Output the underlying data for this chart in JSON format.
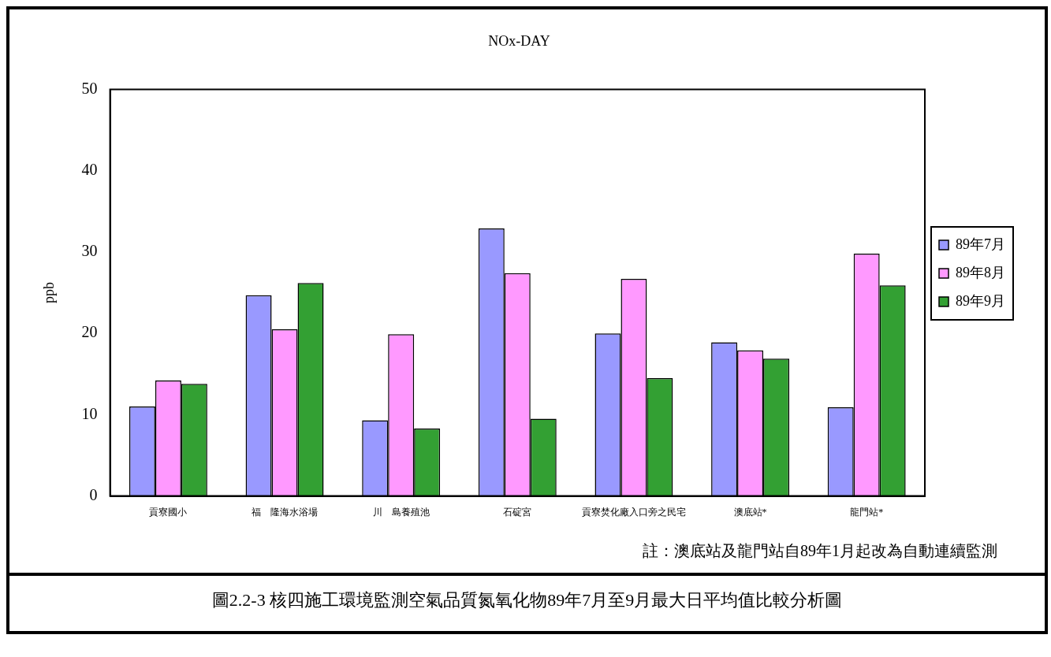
{
  "chart_data": {
    "type": "bar",
    "title": "NOx-DAY",
    "ylabel": "ppb",
    "categories": [
      "貢寮國小",
      "福　隆海水浴場",
      "川　島養殖池",
      "石碇宮",
      "貢寮焚化廠入口旁之民宅",
      "澳底站*",
      "龍門站*"
    ],
    "series": [
      {
        "name": "89年7月",
        "color": "#9999ff",
        "values": [
          11.0,
          24.7,
          9.3,
          32.9,
          20.0,
          18.9,
          10.9
        ]
      },
      {
        "name": "89年8月",
        "color": "#ff99ff",
        "values": [
          14.2,
          20.5,
          19.9,
          27.4,
          26.7,
          17.9,
          29.8
        ]
      },
      {
        "name": "89年9月",
        "color": "#33a033",
        "values": [
          13.8,
          26.2,
          8.3,
          9.5,
          14.5,
          16.9,
          25.9
        ]
      }
    ],
    "ylim": [
      0,
      50
    ],
    "yticks": [
      0,
      10,
      20,
      30,
      40,
      50
    ],
    "grid": false,
    "legend": "right",
    "annotations": [
      "註：澳底站及龍門站自89年1月起改為自動連續監測",
      "圖2.2-3 核四施工環境監測空氣品質氮氧化物89年7月至9月最大日平均值比較分析圖"
    ]
  }
}
